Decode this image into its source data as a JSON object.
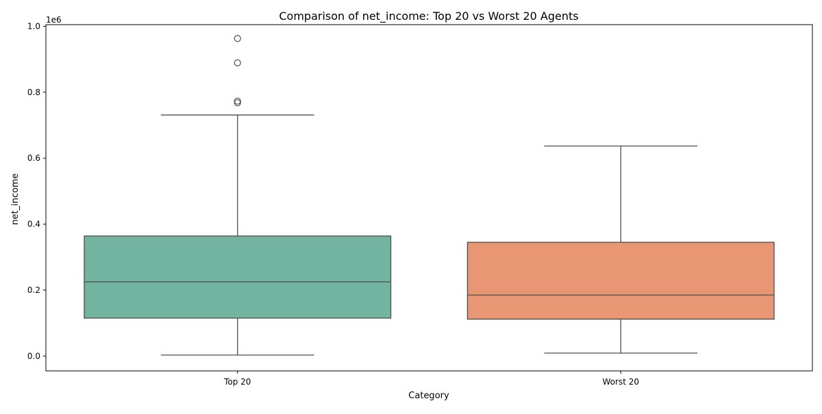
{
  "chart_data": {
    "type": "box",
    "title": "Comparison of net_income: Top 20 vs Worst 20 Agents",
    "xlabel": "Category",
    "ylabel": "net_income",
    "y_offset_label": "1e6",
    "ylim": [
      -0.045,
      1.005
    ],
    "y_ticks": [
      0.0,
      0.2,
      0.4,
      0.6,
      0.8,
      1.0
    ],
    "y_tick_labels": [
      "0.0",
      "0.2",
      "0.4",
      "0.6",
      "0.8",
      "1.0"
    ],
    "grid": false,
    "categories": [
      "Top 20",
      "Worst 20"
    ],
    "boxes": [
      {
        "category": "Top 20",
        "color": "#73b4a0",
        "whisker_low": 0.003,
        "q1": 0.115,
        "median": 0.225,
        "q3": 0.364,
        "whisker_high": 0.731,
        "outliers": [
          0.768,
          0.773,
          0.889,
          0.963
        ]
      },
      {
        "category": "Worst 20",
        "color": "#e89674",
        "whisker_low": 0.009,
        "q1": 0.112,
        "median": 0.185,
        "q3": 0.345,
        "whisker_high": 0.637,
        "outliers": []
      }
    ]
  }
}
